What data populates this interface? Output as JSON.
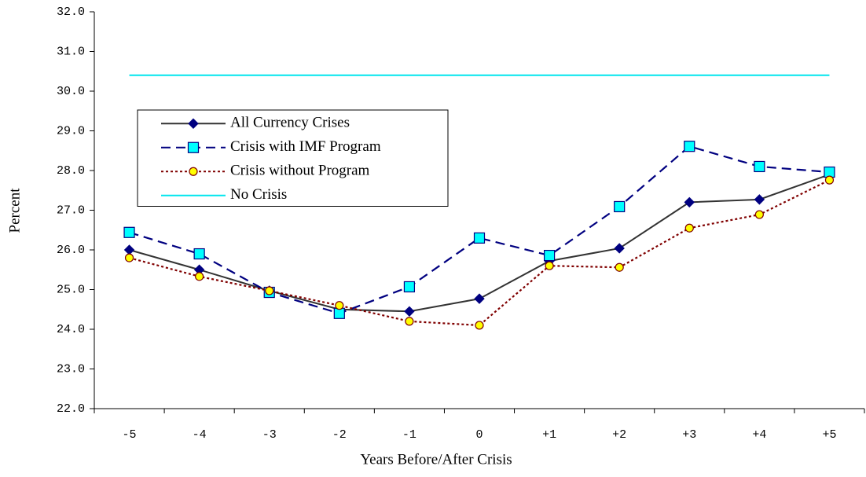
{
  "chart_data": {
    "type": "line",
    "x_label": "Years Before/After Crisis",
    "y_label": "Percent",
    "categories": [
      "-5",
      "-4",
      "-3",
      "-2",
      "-1",
      "0",
      "+1",
      "+2",
      "+3",
      "+4",
      "+5"
    ],
    "ylim": [
      22,
      32
    ],
    "yticks": [
      {
        "value": 22,
        "label": "22.0"
      },
      {
        "value": 23,
        "label": "23.0"
      },
      {
        "value": 24,
        "label": "24.0"
      },
      {
        "value": 25,
        "label": "25.0"
      },
      {
        "value": 26,
        "label": "26.0"
      },
      {
        "value": 27,
        "label": "27.0"
      },
      {
        "value": 28,
        "label": "28.0"
      },
      {
        "value": 29,
        "label": "29.0"
      },
      {
        "value": 30,
        "label": "30.0"
      },
      {
        "value": 31,
        "label": "31.0"
      },
      {
        "value": 32,
        "label": "32.0"
      }
    ],
    "legend": "upper left",
    "series": [
      {
        "name": "All Currency Crises",
        "color": "#333333",
        "marker": "diamond",
        "marker_color": "#000080",
        "marker_fill": "#000080",
        "line_style": "solid",
        "values": [
          26.0,
          25.5,
          24.97,
          24.5,
          24.45,
          24.77,
          25.72,
          26.04,
          27.2,
          27.27,
          27.9
        ]
      },
      {
        "name": "Crisis with IMF Program",
        "color": "#000080",
        "marker": "square",
        "marker_color": "#000080",
        "marker_fill": "#00ffff",
        "line_style": "dashed",
        "values": [
          26.44,
          25.9,
          24.93,
          24.4,
          25.07,
          26.3,
          25.86,
          27.09,
          28.61,
          28.1,
          27.96
        ]
      },
      {
        "name": "Crisis without Program",
        "color": "#800000",
        "marker": "circle",
        "marker_color": "#800000",
        "marker_fill": "#ffff00",
        "line_style": "dotted",
        "values": [
          25.8,
          25.33,
          24.97,
          24.6,
          24.2,
          24.1,
          25.6,
          25.56,
          26.55,
          26.89,
          27.76
        ]
      },
      {
        "name": "No Crisis",
        "color": "#00e5ee",
        "marker": "none",
        "line_style": "solid",
        "values": [
          30.4,
          30.4,
          30.4,
          30.4,
          30.4,
          30.4,
          30.4,
          30.4,
          30.4,
          30.4,
          30.4
        ]
      }
    ]
  }
}
